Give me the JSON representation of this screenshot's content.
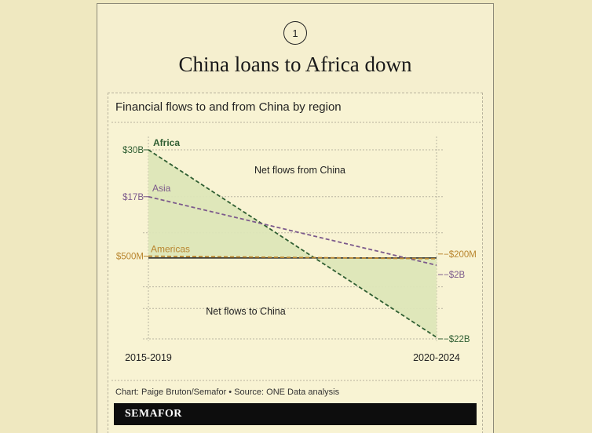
{
  "step_number": "1",
  "headline": "China loans to Africa down",
  "chart_data": {
    "type": "line",
    "title": "Financial flows to and from China by region",
    "categories": [
      "2015-2019",
      "2020-2024"
    ],
    "series": [
      {
        "name": "Africa",
        "values": [
          30000,
          -22000
        ],
        "color": "#2f5e32",
        "start_label": "$30B",
        "end_label": "−$22B"
      },
      {
        "name": "Asia",
        "values": [
          17000,
          -2000
        ],
        "color": "#7c5a8c",
        "start_label": "$17B",
        "end_label": "−$2B"
      },
      {
        "name": "Americas",
        "values": [
          500,
          -200
        ],
        "color": "#b9852e",
        "start_label": "$500M",
        "end_label": "−$200M"
      }
    ],
    "annotations": {
      "above_zero": "Net flows from China",
      "below_zero": "Net flows to China"
    },
    "units": "millions USD",
    "ylim": [
      -22000,
      30000
    ],
    "grid": true,
    "fill_between_africa_and_zero": true,
    "fill_color": "#dde6b8"
  },
  "credit": "Chart: Paige Bruton/Semafor • Source: ONE Data analysis",
  "brand": "SEMAFOR"
}
